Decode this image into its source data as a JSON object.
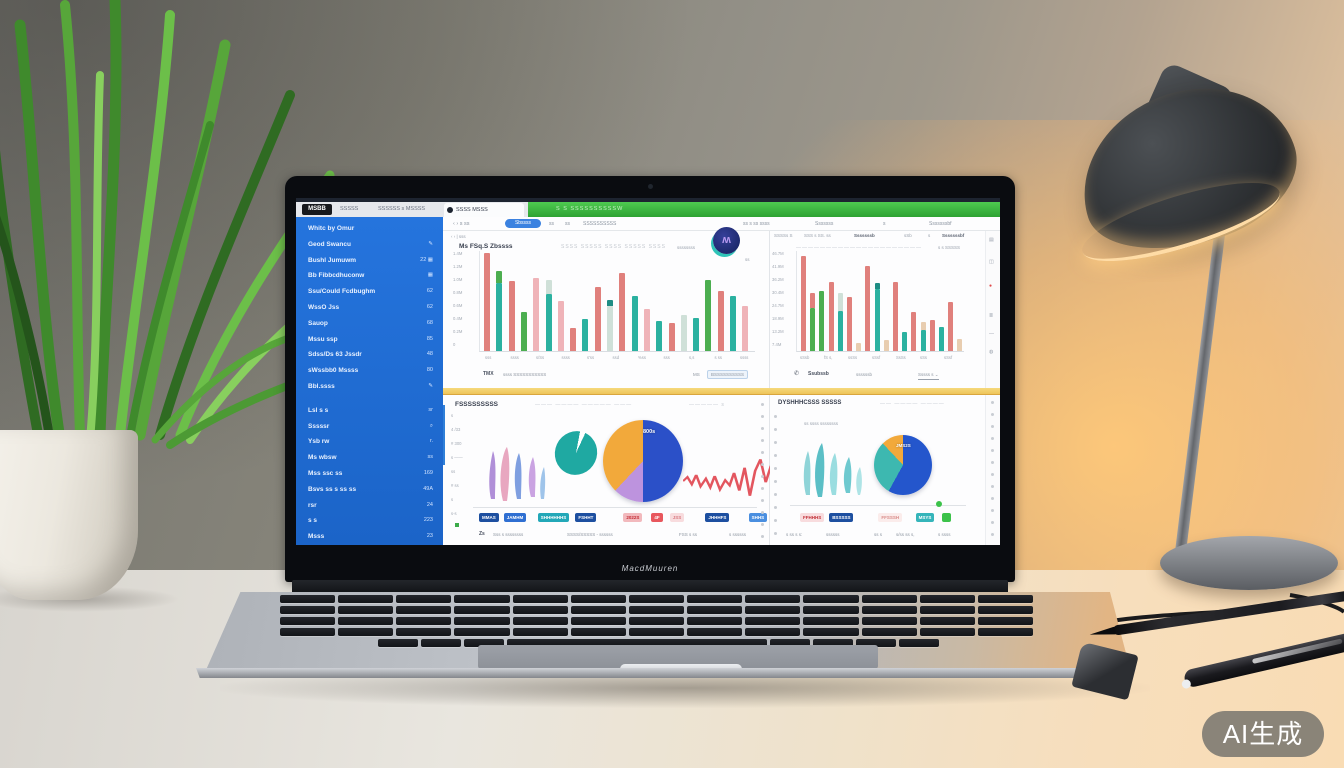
{
  "scene": {
    "watermark": "AI生成",
    "bezel_label": "MacdMuuren"
  },
  "colors": {
    "sidebar_blue": "#2171d8",
    "green_bar": "#3cb93c",
    "yellow_divider": "#f0cf6e",
    "bar_palette": {
      "r": "#e0807c",
      "p": "#efb3b8",
      "t": "#2bb1a0",
      "g": "#4cae50",
      "l": "#cfe0d8",
      "d": "#1e8d84",
      "n": "#e8cdb0"
    }
  },
  "browser": {
    "chip": "MSBB",
    "tab1": "SSSSS",
    "tab2": "SSSSSS s MSSSS",
    "active_tab": "SSSS MSSS",
    "green_bar_text": "S S SSSSSSSSSSW",
    "toolbar": {
      "nav": "‹  ›   s ss",
      "link_pill": "Sbssss",
      "item1": "ss",
      "item2": "ss",
      "item3": "SSSSSSSSSS",
      "item4": "ss s ss ssss",
      "item5": "Sssssss",
      "item6": "s",
      "item7": "Sssssssbf"
    }
  },
  "sidebar": {
    "items": [
      {
        "label": "Whitc by Omur",
        "meta": ""
      },
      {
        "label": "Geod Swancu",
        "meta": "✎"
      },
      {
        "label": "Bushl Jumuwm",
        "meta": "22 ▦"
      },
      {
        "label": "Bb Fibbcdhuconw",
        "meta": "▦"
      },
      {
        "label": "Ssu/Could Fcdbughm",
        "meta": "62"
      },
      {
        "label": "WssO Jss",
        "meta": "62"
      },
      {
        "label": "Sauop",
        "meta": "68"
      },
      {
        "label": "Mssu ssp",
        "meta": "85"
      },
      {
        "label": "Sdss/Ds 63 Jssdr",
        "meta": "48"
      },
      {
        "label": "sWssbb0 Mssss",
        "meta": "80"
      },
      {
        "label": "Bbl.ssss",
        "meta": "✎"
      },
      {
        "label": "Lsl s s",
        "meta": "sr"
      },
      {
        "label": "Sssssr",
        "meta": "⌕"
      },
      {
        "label": "Ysb rw",
        "meta": "r."
      },
      {
        "label": "Ms wbsw",
        "meta": "ss"
      },
      {
        "label": "Mss ssc ss",
        "meta": "169"
      },
      {
        "label": "Bsvs ss s ss ss",
        "meta": "49A"
      },
      {
        "label": "rsr",
        "meta": "24"
      },
      {
        "label": "s s",
        "meta": "223"
      },
      {
        "label": "Msss",
        "meta": "23"
      }
    ]
  },
  "panels": {
    "top_left": {
      "breadcrumb": "‹  ›  |  sss",
      "title": "Ms FSq.S Zbssss",
      "subtitle": "SSSS SSSSS SSSS SSSSS SSSS",
      "corner_text": "ssssssss",
      "avatar_glyph": "ʍ",
      "avatar_sub": "ss",
      "footer_bold": "TMX",
      "footer_text": "ssss SSSSSSSSSSS",
      "footer_right_a": "MS",
      "footer_right_b": "BSSSSSSSSSS"
    },
    "top_right": {
      "head1": "SSSSs S",
      "head2": "SSS s SS. ss",
      "head3": "Sssssssb",
      "head4": "sSb",
      "head5": "s",
      "head6": "Sssssssbf",
      "subtitle": "—————————————————————",
      "sub_right": "s s SSSSS",
      "footer_icon": "✆",
      "footer_a": "Ssubssb",
      "footer_b": "ssssssb",
      "footer_dd": "Sssss s ⌄"
    },
    "bottom_left": {
      "title": "FSSSSSSSSS",
      "subtitle": "——— ———— ————— ———",
      "sub_right": "————— s",
      "y_labels": [
        "s",
        "4 /33",
        "# 300",
        "s ——",
        "ss",
        "# ss",
        "s",
        "s-s"
      ],
      "chips": [
        {
          "t": "MMAS",
          "bg": "#1d4fa0",
          "fg": "#ffffff",
          "ml": 0
        },
        {
          "t": "JAMHM",
          "bg": "#2f6fd2",
          "fg": "#ffffff",
          "ml": 4
        },
        {
          "t": "SHHHHHHS",
          "bg": "#23a8b8",
          "fg": "#ffffff",
          "ml": 10
        },
        {
          "t": "FSHHT",
          "bg": "#1d4fa0",
          "fg": "#ffffff",
          "ml": 4
        },
        {
          "t": "2022S",
          "bg": "#f2b9bd",
          "fg": "#c22a33",
          "ml": 24
        },
        {
          "t": "4F",
          "bg": "#e8575d",
          "fg": "#ffffff",
          "ml": 4
        },
        {
          "t": "JSS",
          "bg": "#f8dcde",
          "fg": "#d97b82",
          "ml": 4
        },
        {
          "t": "JHHHFS",
          "bg": "#1d4fa0",
          "fg": "#ffffff",
          "ml": 18
        },
        {
          "t": "SHHS",
          "bg": "#4a8fe0",
          "fg": "#ffffff",
          "ml": 16
        }
      ],
      "footer_a": "Zs",
      "footer_b": "Sss s ssssssss",
      "footer_c": "SSSS/SSSSS - ssssss",
      "footer_d": "FSS s ss",
      "footer_e": "s ssssss"
    },
    "bottom_right": {
      "title": "DYSHHHCSSS SSSSS",
      "subtitle": "—— ———— ————",
      "note": "ss ssss ssssssss",
      "chips": [
        {
          "t": "FFHHHS",
          "bg": "#f8dcde",
          "fg": "#c23038",
          "ml": 0
        },
        {
          "t": "BSSSSS",
          "bg": "#1d4fa0",
          "fg": "#ffffff",
          "ml": 2
        },
        {
          "t": "FFSSSH",
          "bg": "#fbeceb",
          "fg": "#d98b88",
          "ml": 22
        },
        {
          "t": "MSYS",
          "bg": "#35b5ba",
          "fg": "#ffffff",
          "ml": 10
        },
        {
          "t": "s",
          "bg": "#3cc24a",
          "fg": "#3cc24a",
          "ml": 6
        }
      ],
      "footer_a": "s ss s s:",
      "footer_b": "ssssss",
      "footer_c": "ss s",
      "footer_d": "s/ss ss s,",
      "footer_e": "s ssss"
    }
  },
  "chart_data": [
    {
      "id": "top_left_bars",
      "type": "bar",
      "title": "Ms FSq.S Zbssss",
      "ylim": [
        0,
        100
      ],
      "y_ticks": [
        "1.4M",
        "1.2M",
        "1.0M",
        "0.8M",
        "0.6M",
        "0.4M",
        "0.2M",
        "0"
      ],
      "x_ticks": [
        "sss",
        "ssss",
        "s/Ss",
        "ssss",
        "s'ss",
        "ssd",
        "%ss",
        "sss",
        "s,s",
        "s ss",
        "ssss"
      ],
      "bars": [
        {
          "v": 98,
          "c": "r"
        },
        {
          "v": 68,
          "c": "t",
          "cap": {
            "v": 12,
            "c": "g"
          }
        },
        {
          "v": 70,
          "c": "r"
        },
        {
          "v": 39,
          "c": "g"
        },
        {
          "v": 73,
          "c": "p"
        },
        {
          "v": 57,
          "c": "t",
          "cap": {
            "v": 14,
            "c": "l"
          }
        },
        {
          "v": 50,
          "c": "p"
        },
        {
          "v": 23,
          "c": "r"
        },
        {
          "v": 32,
          "c": "t"
        },
        {
          "v": 64,
          "c": "r"
        },
        {
          "v": 45,
          "c": "l",
          "cap": {
            "v": 6,
            "c": "d"
          }
        },
        {
          "v": 78,
          "c": "r"
        },
        {
          "v": 55,
          "c": "t"
        },
        {
          "v": 42,
          "c": "p"
        },
        {
          "v": 30,
          "c": "t"
        },
        {
          "v": 28,
          "c": "r"
        },
        {
          "v": 36,
          "c": "l"
        },
        {
          "v": 33,
          "c": "t"
        },
        {
          "v": 71,
          "c": "g"
        },
        {
          "v": 60,
          "c": "r"
        },
        {
          "v": 55,
          "c": "t"
        },
        {
          "v": 45,
          "c": "p"
        }
      ]
    },
    {
      "id": "top_right_bars",
      "type": "bar",
      "ylim": [
        0,
        100
      ],
      "y_ticks": [
        "46.7M",
        "41.9M",
        "36.2M",
        "30.4M",
        "24.7M",
        "18.9M",
        "13.2M",
        "7.4M"
      ],
      "x_ticks": [
        "sSsb",
        "fS s,",
        "ssSs",
        "sSsf",
        "SsSs",
        "sSs",
        "sSsf"
      ],
      "bars": [
        {
          "v": 95,
          "c": "r"
        },
        {
          "v": 43,
          "c": "g",
          "cap": {
            "v": 15,
            "c": "r"
          }
        },
        {
          "v": 60,
          "c": "g"
        },
        {
          "v": 69,
          "c": "r"
        },
        {
          "v": 40,
          "c": "t",
          "cap": {
            "v": 18,
            "c": "l"
          }
        },
        {
          "v": 54,
          "c": "r"
        },
        {
          "v": 8,
          "c": "n"
        },
        {
          "v": 85,
          "c": "r"
        },
        {
          "v": 62,
          "c": "t",
          "cap": {
            "v": 6,
            "c": "d"
          }
        },
        {
          "v": 11,
          "c": "n"
        },
        {
          "v": 69,
          "c": "r"
        },
        {
          "v": 19,
          "c": "t"
        },
        {
          "v": 39,
          "c": "r"
        },
        {
          "v": 21,
          "c": "t",
          "cap": {
            "v": 8,
            "c": "n"
          }
        },
        {
          "v": 31,
          "c": "r"
        },
        {
          "v": 24,
          "c": "t"
        },
        {
          "v": 49,
          "c": "r"
        },
        {
          "v": 12,
          "c": "n"
        }
      ]
    },
    {
      "id": "bottom_left_pie",
      "type": "pie",
      "label": "800s",
      "slices": [
        {
          "color": "#2b50c8",
          "pct": 50
        },
        {
          "color": "#bd93de",
          "pct": 12
        },
        {
          "color": "#f2a93b",
          "pct": 38
        }
      ]
    },
    {
      "id": "small_teal_pie",
      "type": "pie",
      "label": "",
      "slices": [
        {
          "color": "#1fa9a2",
          "pct": 96
        },
        {
          "color": "#ffffff",
          "pct": 4
        }
      ]
    },
    {
      "id": "bottom_left_line",
      "type": "line",
      "color": "#e3565f",
      "points": [
        [
          0,
          60
        ],
        [
          5,
          52
        ],
        [
          10,
          66
        ],
        [
          15,
          48
        ],
        [
          20,
          70
        ],
        [
          26,
          55
        ],
        [
          31,
          72
        ],
        [
          36,
          50
        ],
        [
          42,
          76
        ],
        [
          48,
          58
        ],
        [
          53,
          68
        ],
        [
          58,
          44
        ],
        [
          64,
          78
        ],
        [
          70,
          34
        ],
        [
          76,
          88
        ],
        [
          82,
          40
        ],
        [
          88,
          18
        ],
        [
          94,
          62
        ],
        [
          100,
          30
        ]
      ]
    },
    {
      "id": "bottom_right_pie",
      "type": "pie",
      "label": "JMS2S",
      "slices": [
        {
          "color": "#2456cc",
          "pct": 58
        },
        {
          "color": "#3db8b0",
          "pct": 30
        },
        {
          "color": "#f2a93b",
          "pct": 12
        }
      ]
    }
  ]
}
